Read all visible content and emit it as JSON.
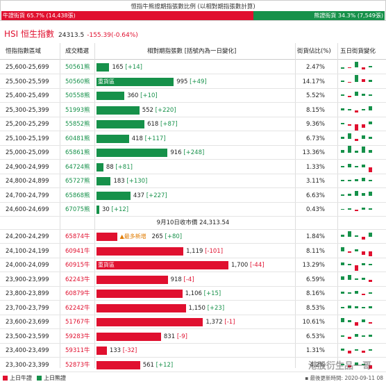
{
  "ratio": {
    "title": "恒指牛熊證期指張數比例 (以相對期指張數計算)",
    "bull_label": "牛證街貨 65.7% (14,438張)",
    "bear_label": "熊證街貨 34.3% (7,549張)",
    "bull_fraction": 0.657
  },
  "index": {
    "name": "HSI 恒生指數",
    "value": "24313.5",
    "change": "-155.39(-0.64%)"
  },
  "headers": {
    "range": "恒指指數區域",
    "code": "成交精選",
    "contracts": "相對期指張數 [括號內為一日變化]",
    "pct": "街貨佔比(%)",
    "five_day": "五日街貨變化"
  },
  "bear_rows": [
    {
      "range": "25,600-25,699",
      "code": "50561熊",
      "value": 165,
      "value_text": "165",
      "chg": "[+14]",
      "pct": "2.47%",
      "tag": ""
    },
    {
      "range": "25,500-25,599",
      "code": "50560熊",
      "value": 995,
      "value_text": "995",
      "chg": "[+49]",
      "pct": "14.17%",
      "tag": "重貨區"
    },
    {
      "range": "25,400-25,499",
      "code": "50558熊",
      "value": 360,
      "value_text": "360",
      "chg": "[+10]",
      "pct": "5.52%",
      "tag": ""
    },
    {
      "range": "25,300-25,399",
      "code": "51993熊",
      "value": 552,
      "value_text": "552",
      "chg": "[+220]",
      "pct": "8.15%",
      "tag": ""
    },
    {
      "range": "25,200-25,299",
      "code": "55852熊",
      "value": 618,
      "value_text": "618",
      "chg": "[+87]",
      "pct": "9.36%",
      "tag": ""
    },
    {
      "range": "25,100-25,199",
      "code": "60481熊",
      "value": 418,
      "value_text": "418",
      "chg": "[+117]",
      "pct": "6.73%",
      "tag": ""
    },
    {
      "range": "25,000-25,099",
      "code": "65861熊",
      "value": 916,
      "value_text": "916",
      "chg": "[+248]",
      "pct": "13.36%",
      "tag": ""
    },
    {
      "range": "24,900-24,999",
      "code": "64724熊",
      "value": 88,
      "value_text": "88",
      "chg": "[+81]",
      "pct": "1.33%",
      "tag": ""
    },
    {
      "range": "24,800-24,899",
      "code": "65727熊",
      "value": 183,
      "value_text": "183",
      "chg": "[+130]",
      "pct": "3.11%",
      "tag": ""
    },
    {
      "range": "24,700-24,799",
      "code": "65868熊",
      "value": 437,
      "value_text": "437",
      "chg": "[+227]",
      "pct": "6.63%",
      "tag": ""
    },
    {
      "range": "24,600-24,699",
      "code": "67075熊",
      "value": 30,
      "value_text": "30",
      "chg": "[+12]",
      "pct": "0.43%",
      "tag": ""
    }
  ],
  "mid_text": "9月10日收市價 24,313.54",
  "bull_rows": [
    {
      "range": "24,200-24,299",
      "code": "65874牛",
      "value": 265,
      "value_text": "265",
      "chg": "[+80]",
      "pct": "1.84%",
      "tag": "",
      "new_tag": "▲最多新增"
    },
    {
      "range": "24,100-24,199",
      "code": "60941牛",
      "value": 1119,
      "value_text": "1,119",
      "chg": "[-101]",
      "pct": "8.11%",
      "tag": "",
      "new_tag": ""
    },
    {
      "range": "24,000-24,099",
      "code": "60915牛",
      "value": 1700,
      "value_text": "1,700",
      "chg": "[-44]",
      "pct": "13.29%",
      "tag": "重貨區",
      "new_tag": ""
    },
    {
      "range": "23,900-23,999",
      "code": "62243牛",
      "value": 918,
      "value_text": "918",
      "chg": "[-4]",
      "pct": "6.59%",
      "tag": "",
      "new_tag": ""
    },
    {
      "range": "23,800-23,899",
      "code": "60879牛",
      "value": 1106,
      "value_text": "1,106",
      "chg": "[+15]",
      "pct": "8.16%",
      "tag": "",
      "new_tag": ""
    },
    {
      "range": "23,700-23,799",
      "code": "62242牛",
      "value": 1150,
      "value_text": "1,150",
      "chg": "[+23]",
      "pct": "8.53%",
      "tag": "",
      "new_tag": ""
    },
    {
      "range": "23,600-23,699",
      "code": "51767牛",
      "value": 1372,
      "value_text": "1,372",
      "chg": "[-1]",
      "pct": "10.61%",
      "tag": "",
      "new_tag": ""
    },
    {
      "range": "23,500-23,599",
      "code": "59283牛",
      "value": 831,
      "value_text": "831",
      "chg": "[-9]",
      "pct": "6.53%",
      "tag": "",
      "new_tag": ""
    },
    {
      "range": "23,400-23,499",
      "code": "59311牛",
      "value": 133,
      "value_text": "133",
      "chg": "[-32]",
      "pct": "1.31%",
      "tag": "",
      "new_tag": ""
    },
    {
      "range": "23,300-23,399",
      "code": "52873牛",
      "value": 561,
      "value_text": "561",
      "chg": "[+12]",
      "pct": "4.2%",
      "tag": "",
      "new_tag": ""
    }
  ],
  "legend": {
    "bull": "上日牛證",
    "bear": "上日熊證"
  },
  "footer": "▪ 最後更新時間: 2020-09-11 08",
  "watermark": "港股衍生品一哥",
  "colors": {
    "bull": "#e0102f",
    "bear": "#16914a"
  }
}
